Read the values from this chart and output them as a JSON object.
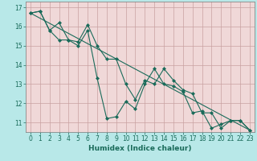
{
  "title": "",
  "xlabel": "Humidex (Indice chaleur)",
  "ylabel": "",
  "background_color": "#b8e8e8",
  "plot_bg_color": "#f0d8d8",
  "grid_color": "#c8a0a0",
  "line_color": "#1a6b5a",
  "series": [
    {
      "x": [
        0,
        1,
        2,
        3,
        4,
        5,
        6,
        7,
        8,
        9,
        10,
        11,
        12,
        13,
        14,
        15,
        16,
        17,
        18,
        19,
        20,
        21,
        22,
        23
      ],
      "y": [
        16.7,
        16.8,
        15.8,
        15.3,
        15.3,
        15.0,
        15.8,
        13.3,
        11.2,
        11.3,
        12.1,
        11.7,
        13.0,
        13.8,
        13.0,
        12.9,
        12.6,
        11.5,
        11.6,
        10.7,
        10.9,
        11.1,
        11.1,
        10.6
      ]
    },
    {
      "x": [
        0,
        1,
        2,
        3,
        4,
        5,
        6,
        7,
        8,
        9,
        10,
        11,
        12,
        13,
        14,
        15,
        16,
        17,
        18,
        19,
        20,
        21,
        22,
        23
      ],
      "y": [
        16.7,
        16.8,
        15.8,
        16.2,
        15.3,
        15.2,
        16.1,
        15.0,
        14.3,
        14.3,
        13.0,
        12.2,
        13.2,
        13.0,
        13.8,
        13.2,
        12.7,
        12.5,
        11.5,
        11.5,
        10.7,
        11.1,
        11.1,
        10.6
      ]
    },
    {
      "x": [
        0,
        23
      ],
      "y": [
        16.7,
        10.6
      ]
    }
  ],
  "ylim": [
    10.5,
    17.3
  ],
  "xlim": [
    -0.5,
    23.5
  ],
  "yticks": [
    11,
    12,
    13,
    14,
    15,
    16,
    17
  ],
  "xticks": [
    0,
    1,
    2,
    3,
    4,
    5,
    6,
    7,
    8,
    9,
    10,
    11,
    12,
    13,
    14,
    15,
    16,
    17,
    18,
    19,
    20,
    21,
    22,
    23
  ],
  "xtick_labels": [
    "0",
    "1",
    "2",
    "3",
    "4",
    "5",
    "6",
    "7",
    "8",
    "9",
    "10",
    "11",
    "12",
    "13",
    "14",
    "15",
    "16",
    "17",
    "18",
    "19",
    "20",
    "21",
    "22",
    "23"
  ],
  "marker": "D",
  "marker_size": 2.0,
  "line_width": 0.8,
  "tick_fontsize": 5.5,
  "xlabel_fontsize": 6.5
}
